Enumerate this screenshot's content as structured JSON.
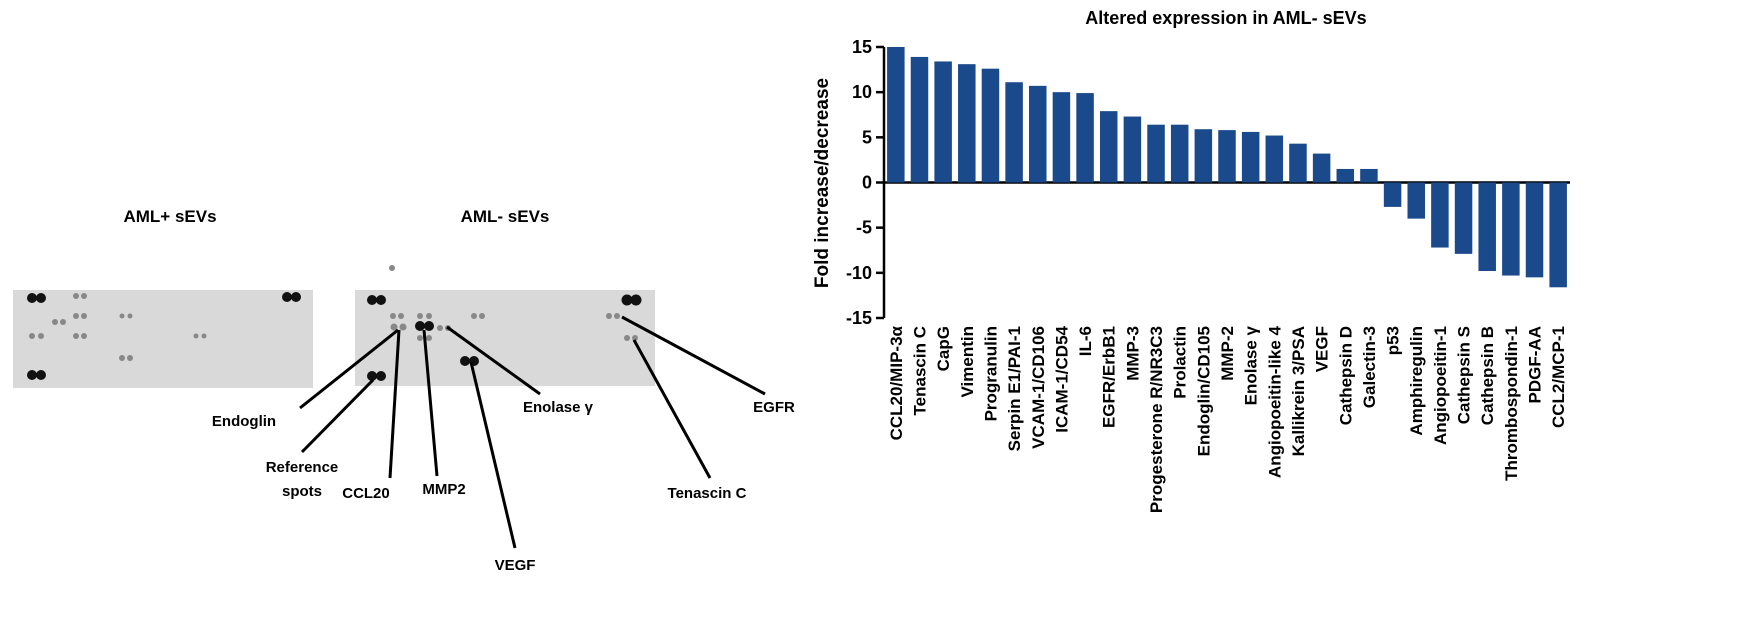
{
  "blot": {
    "panels": [
      {
        "title": "AML+ sEVs"
      },
      {
        "title": "AML- sEVs"
      }
    ],
    "labels": [
      {
        "text": "Endoglin"
      },
      {
        "lines": [
          "Reference",
          "spots"
        ]
      },
      {
        "text": "CCL20"
      },
      {
        "text": "MMP2"
      },
      {
        "text": "VEGF"
      },
      {
        "text": "Enolase γ"
      },
      {
        "text": "EGFR"
      },
      {
        "text": "Tenascin C"
      }
    ]
  },
  "chart_data": {
    "type": "bar",
    "title": "Altered expression in AML- sEVs",
    "ylabel": "Fold increase/decrease",
    "categories": [
      "CCL20/MIP-3α",
      "Tenascin C",
      "CapG",
      "Vimentin",
      "Progranulin",
      "Serpin E1/PAI-1",
      "VCAM-1/CD106",
      "ICAM-1/CD54",
      "IL-6",
      "EGFR/ErbB1",
      "MMP-3",
      "Progesterone R/NR3C3",
      "Prolactin",
      "Endoglin/CD105",
      "MMP-2",
      "Enolase γ",
      "Angiopoeitin-like 4",
      "Kallikrein 3/PSA",
      "VEGF",
      "Cathepsin D",
      "Galectin-3",
      "p53",
      "Amphiregulin",
      "Angiopoeitin-1",
      "Cathepsin S",
      "Cathepsin B",
      "Thrombospondin-1",
      "PDGF-AA",
      "CCL2/MCP-1"
    ],
    "values": [
      15.0,
      13.9,
      13.4,
      13.1,
      12.6,
      11.1,
      10.7,
      10.0,
      9.9,
      7.9,
      7.3,
      6.4,
      6.4,
      5.9,
      5.8,
      5.6,
      5.2,
      4.3,
      3.2,
      1.5,
      1.5,
      -2.7,
      -4.0,
      -7.2,
      -7.9,
      -9.8,
      -10.3,
      -10.5,
      -11.6
    ],
    "color": "#1b4a8c",
    "ylim": [
      -15,
      15
    ],
    "yticks": [
      -15,
      -10,
      -5,
      0,
      5,
      10,
      15
    ],
    "grid": false
  }
}
